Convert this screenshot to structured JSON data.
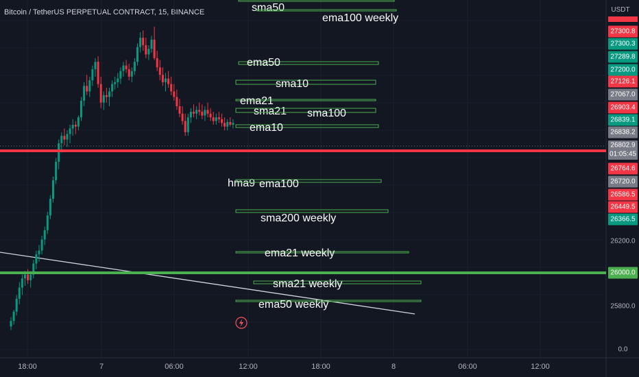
{
  "header": {
    "title": "Bitcoin / TetherUS PERPETUAL CONTRACT, 15, BINANCE"
  },
  "price_scale": {
    "currency": "USDT",
    "countdown": "01:05:45",
    "markers": [
      {
        "price": 27300.8,
        "label": "27300.8",
        "color": "#f23645"
      },
      {
        "price": 27300.3,
        "label": "27300.3",
        "color": "#089981"
      },
      {
        "price": 27289.8,
        "label": "27289.8",
        "color": "#089981"
      },
      {
        "price": 27200.0,
        "label": "27200.0",
        "color": "#089981"
      },
      {
        "price": 27126.1,
        "label": "27126.1",
        "color": "#f23645"
      },
      {
        "price": 27067.0,
        "label": "27067.0",
        "color": "#787b86"
      },
      {
        "price": 26903.4,
        "label": "26903.4",
        "color": "#f23645"
      },
      {
        "price": 26839.1,
        "label": "26839.1",
        "color": "#089981"
      },
      {
        "price": 26838.2,
        "label": "26838.2",
        "color": "#787b86"
      },
      {
        "price": 26802.9,
        "label": "26802.9",
        "color": "#787b86"
      },
      {
        "price": 26764.6,
        "label": "26764.6",
        "color": "#f23645"
      },
      {
        "price": 26720.0,
        "label": "26720.0",
        "color": "#787b86"
      },
      {
        "price": 26586.5,
        "label": "26586.5",
        "color": "#f23645"
      },
      {
        "price": 26449.5,
        "label": "26449.5",
        "color": "#f23645"
      },
      {
        "price": 26366.5,
        "label": "26366.5",
        "color": "#089981"
      },
      {
        "price": 26000.0,
        "label": "26000.0",
        "color": "#4caf50"
      }
    ],
    "plain_ticks": [
      {
        "price": 26200.0,
        "label": "26200.0"
      },
      {
        "price": 25800.0,
        "label": "25800.0"
      },
      {
        "price": 25500,
        "label": "0.0"
      }
    ]
  },
  "chart_data": {
    "type": "candlestick",
    "x_ticks": [
      "18:00",
      "7",
      "06:00",
      "12:00",
      "18:00",
      "8",
      "06:00",
      "12:00"
    ],
    "horizontal_lines": [
      {
        "price": 26790,
        "color": "#f23645",
        "name": "red-support-line"
      },
      {
        "price": 26000,
        "color": "#4caf50",
        "name": "green-support-line"
      }
    ],
    "indicator_levels": [
      {
        "label": "sma50",
        "price": 27395
      },
      {
        "label": "ema100 weekly",
        "price": 27375
      },
      {
        "label": "ema50",
        "price": 27160
      },
      {
        "label": "sma10",
        "price": 27070
      },
      {
        "label": "ema21",
        "price": 26985
      },
      {
        "label": "sma21",
        "price": 26945
      },
      {
        "label": "sma100",
        "price": 26945
      },
      {
        "label": "ema10",
        "price": 26880
      },
      {
        "label": "hma9",
        "price": 26635
      },
      {
        "label": "ema100",
        "price": 26635
      },
      {
        "label": "sma200 weekly",
        "price": 26480
      },
      {
        "label": "ema21 weekly",
        "price": 26235
      },
      {
        "label": "sma21 weekly",
        "price": 25965
      },
      {
        "label": "ema50 weekly",
        "price": 25895
      }
    ],
    "candles": [
      [
        25710,
        25760,
        25690,
        25740
      ],
      [
        25740,
        25800,
        25720,
        25790
      ],
      [
        25790,
        25880,
        25770,
        25860
      ],
      [
        25860,
        25950,
        25830,
        25920
      ],
      [
        25920,
        25990,
        25880,
        25970
      ],
      [
        25970,
        26010,
        25930,
        25990
      ],
      [
        25990,
        26020,
        25940,
        25960
      ],
      [
        25960,
        26010,
        25920,
        25990
      ],
      [
        25990,
        26070,
        25970,
        26050
      ],
      [
        26050,
        26120,
        26020,
        26100
      ],
      [
        26100,
        26150,
        26060,
        26120
      ],
      [
        26120,
        26200,
        26100,
        26180
      ],
      [
        26180,
        26250,
        26150,
        26230
      ],
      [
        26230,
        26330,
        26210,
        26310
      ],
      [
        26310,
        26420,
        26290,
        26400
      ],
      [
        26400,
        26520,
        26380,
        26500
      ],
      [
        26500,
        26620,
        26480,
        26600
      ],
      [
        26600,
        26720,
        26560,
        26700
      ],
      [
        26700,
        26760,
        26650,
        26740
      ],
      [
        26740,
        26780,
        26690,
        26720
      ],
      [
        26720,
        26770,
        26680,
        26750
      ],
      [
        26750,
        26800,
        26700,
        26780
      ],
      [
        26780,
        26830,
        26740,
        26800
      ],
      [
        26800,
        26820,
        26750,
        26790
      ],
      [
        26790,
        26850,
        26770,
        26840
      ],
      [
        26840,
        26950,
        26820,
        26930
      ],
      [
        26930,
        27030,
        26900,
        27010
      ],
      [
        27010,
        27070,
        26960,
        26980
      ],
      [
        26980,
        27060,
        26950,
        27040
      ],
      [
        27040,
        27120,
        27010,
        27100
      ],
      [
        27100,
        27160,
        27060,
        27140
      ],
      [
        27140,
        27170,
        27000,
        27020
      ],
      [
        27020,
        27060,
        26890,
        26920
      ],
      [
        26920,
        26980,
        26880,
        26960
      ],
      [
        26960,
        27000,
        26920,
        26950
      ],
      [
        26950,
        27000,
        26900,
        26980
      ],
      [
        26980,
        27040,
        26950,
        27020
      ],
      [
        27020,
        27060,
        26990,
        27030
      ],
      [
        27030,
        27080,
        27000,
        27050
      ],
      [
        27050,
        27110,
        27020,
        27090
      ],
      [
        27090,
        27140,
        27060,
        27120
      ],
      [
        27120,
        27150,
        27080,
        27100
      ],
      [
        27100,
        27130,
        27040,
        27060
      ],
      [
        27060,
        27110,
        27030,
        27090
      ],
      [
        27090,
        27160,
        27070,
        27140
      ],
      [
        27140,
        27240,
        27120,
        27220
      ],
      [
        27220,
        27300,
        27190,
        27270
      ],
      [
        27270,
        27310,
        27200,
        27230
      ],
      [
        27230,
        27270,
        27160,
        27180
      ],
      [
        27180,
        27230,
        27150,
        27210
      ],
      [
        27210,
        27280,
        27190,
        27260
      ],
      [
        27260,
        27330,
        27150,
        27160
      ],
      [
        27160,
        27200,
        27090,
        27110
      ],
      [
        27110,
        27150,
        27040,
        27070
      ],
      [
        27070,
        27110,
        27010,
        27030
      ],
      [
        27030,
        27080,
        26980,
        27050
      ],
      [
        27050,
        27090,
        27000,
        27020
      ],
      [
        27020,
        27060,
        26960,
        26980
      ],
      [
        26980,
        27020,
        26930,
        26950
      ],
      [
        26950,
        26990,
        26880,
        26900
      ],
      [
        26900,
        26940,
        26840,
        26860
      ],
      [
        26860,
        26900,
        26800,
        26820
      ],
      [
        26820,
        26860,
        26740,
        26760
      ],
      [
        26760,
        26860,
        26740,
        26840
      ],
      [
        26840,
        26890,
        26810,
        26870
      ],
      [
        26870,
        26910,
        26840,
        26860
      ],
      [
        26860,
        26900,
        26830,
        26880
      ],
      [
        26880,
        26920,
        26850,
        26870
      ],
      [
        26870,
        26910,
        26830,
        26850
      ],
      [
        26850,
        26900,
        26820,
        26880
      ],
      [
        26880,
        26920,
        26840,
        26860
      ],
      [
        26860,
        26890,
        26820,
        26840
      ],
      [
        26840,
        26870,
        26800,
        26820
      ],
      [
        26820,
        26860,
        26800,
        26840
      ],
      [
        26840,
        26870,
        26810,
        26830
      ],
      [
        26830,
        26860,
        26790,
        26810
      ],
      [
        26810,
        26840,
        26770,
        26790
      ],
      [
        26790,
        26830,
        26770,
        26815
      ],
      [
        26815,
        26840,
        26790,
        26800
      ],
      [
        26800,
        26830,
        26780,
        26810
      ]
    ]
  }
}
